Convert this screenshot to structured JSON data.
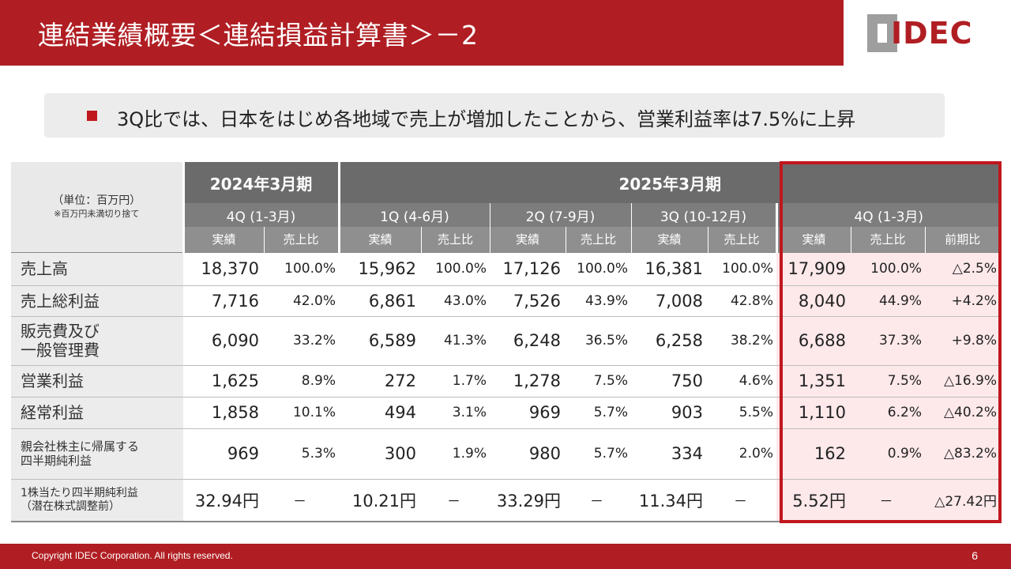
{
  "header": {
    "title": "連結業績概要＜連結損益計算書＞－2",
    "logo_text": "IDEC",
    "brand_color": "#b01e23"
  },
  "summary": {
    "text": "3Q比では、日本をはじめ各地域で売上が増加したことから、営業利益率は7.5%に上昇"
  },
  "table": {
    "unit_label": "（単位：百万円）",
    "unit_note": "※百万円未満切り捨て",
    "fy_2024": "2024年3月期",
    "fy_2025": "2025年3月期",
    "quarters": [
      "4Q (1-3月)",
      "1Q (4-6月)",
      "2Q (7-9月)",
      "3Q (10-12月)",
      "4Q (1-3月)"
    ],
    "col_actual": "実績",
    "col_ratio": "売上比",
    "col_yoy": "前期比",
    "rows": [
      {
        "label": "売上高",
        "values": [
          "18,370",
          "100.0%",
          "15,962",
          "100.0%",
          "17,126",
          "100.0%",
          "16,381",
          "100.0%",
          "17,909",
          "100.0%",
          "△2.5%"
        ]
      },
      {
        "label": "売上総利益",
        "values": [
          "7,716",
          "42.0%",
          "6,861",
          "43.0%",
          "7,526",
          "43.9%",
          "7,008",
          "42.8%",
          "8,040",
          "44.9%",
          "+4.2%"
        ]
      },
      {
        "label_line1": "販売費及び",
        "label_line2": "一般管理費",
        "values": [
          "6,090",
          "33.2%",
          "6,589",
          "41.3%",
          "6,248",
          "36.5%",
          "6,258",
          "38.2%",
          "6,688",
          "37.3%",
          "+9.8%"
        ]
      },
      {
        "label": "営業利益",
        "values": [
          "1,625",
          "8.9%",
          "272",
          "1.7%",
          "1,278",
          "7.5%",
          "750",
          "4.6%",
          "1,351",
          "7.5%",
          "△16.9%"
        ]
      },
      {
        "label": "経常利益",
        "values": [
          "1,858",
          "10.1%",
          "494",
          "3.1%",
          "969",
          "5.7%",
          "903",
          "5.5%",
          "1,110",
          "6.2%",
          "△40.2%"
        ]
      },
      {
        "label_line1": "親会社株主に帰属する",
        "label_line2": "四半期純利益",
        "values": [
          "969",
          "5.3%",
          "300",
          "1.9%",
          "980",
          "5.7%",
          "334",
          "2.0%",
          "162",
          "0.9%",
          "△83.2%"
        ]
      },
      {
        "label_line1": "1株当たり四半期純利益",
        "label_line2": "（潜在株式調整前）",
        "values": [
          "32.94円",
          "－",
          "10.21円",
          "－",
          "33.29円",
          "－",
          "11.34円",
          "－",
          "5.52円",
          "－",
          "△27.42円"
        ]
      }
    ]
  },
  "footer": {
    "copyright": "Copyright IDEC Corporation. All rights reserved.",
    "page_number": "6"
  }
}
